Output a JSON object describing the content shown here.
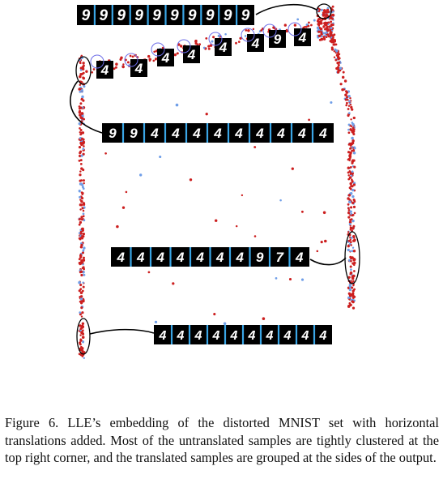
{
  "figure": {
    "strips": [
      {
        "id": "top",
        "digits": [
          "9",
          "9",
          "9",
          "9",
          "9",
          "9",
          "9",
          "9",
          "9",
          "9"
        ]
      },
      {
        "id": "diagonal",
        "digits": [
          "4",
          "4",
          "4",
          "4",
          "4",
          "4",
          "9",
          "4"
        ]
      },
      {
        "id": "left-upper",
        "digits": [
          "9",
          "9",
          "4",
          "4",
          "4",
          "4",
          "4",
          "4",
          "4",
          "4",
          "4"
        ]
      },
      {
        "id": "right-middle",
        "digits": [
          "4",
          "4",
          "4",
          "4",
          "4",
          "4",
          "4",
          "9",
          "7",
          "4"
        ]
      },
      {
        "id": "bottom",
        "digits": [
          "4",
          "4",
          "4",
          "4",
          "4",
          "4",
          "4",
          "4",
          "4",
          "4"
        ]
      }
    ],
    "colors": {
      "point_red": "#cc1f1f",
      "point_blue": "#6f9ee8",
      "strip_bg": "#000000",
      "strip_separator": "#3aa6e6",
      "annotation": "#000000"
    }
  },
  "caption": "Figure 6. LLE’s embedding of the distorted MNIST set with horizontal translations added.  Most of the untranslated samples are tightly clustered at the top right corner, and the translated samples are grouped at the sides of the output."
}
